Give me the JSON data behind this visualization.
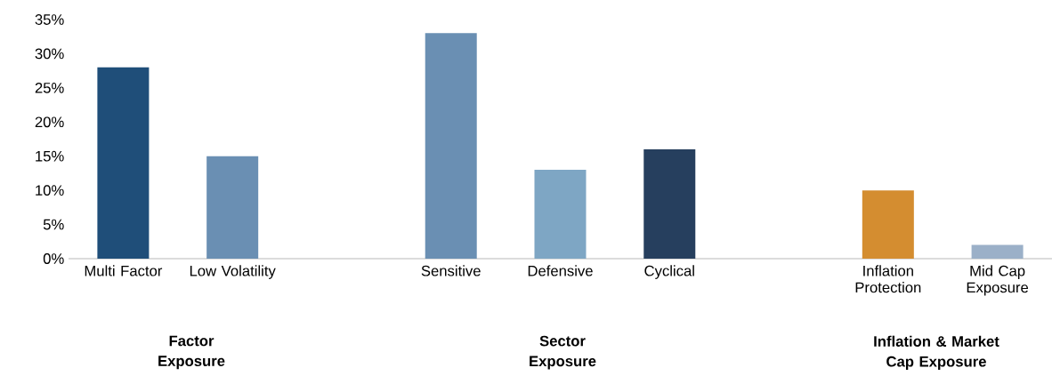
{
  "chart_data": {
    "type": "bar",
    "categories": [
      "Multi Factor",
      "Low Volatility",
      null,
      "Sensitive",
      "Defensive",
      "Cyclical",
      null,
      "Inflation Protection",
      "Mid Cap Exposure"
    ],
    "values": [
      28,
      15,
      null,
      33,
      13,
      16,
      null,
      10,
      2
    ],
    "colors": [
      "#1f4e79",
      "#6a8fb3",
      "#ffffff",
      "#6a8fb3",
      "#7ea6c4",
      "#263f5e",
      "#ffffff",
      "#d48d30",
      "#9bb0c8"
    ],
    "ylim": [
      0,
      35
    ],
    "yticks": [
      {
        "value": 0,
        "label": "0%"
      },
      {
        "value": 5,
        "label": "5%"
      },
      {
        "value": 10,
        "label": "10%"
      },
      {
        "value": 15,
        "label": "15%"
      },
      {
        "value": 20,
        "label": "20%"
      },
      {
        "value": 25,
        "label": "25%"
      },
      {
        "value": 30,
        "label": "30%"
      },
      {
        "value": 35,
        "label": "35%"
      }
    ],
    "annotations": [
      "Factor Exposure",
      "Sector Exposure",
      "Inflation & Market Cap Exposure"
    ]
  }
}
